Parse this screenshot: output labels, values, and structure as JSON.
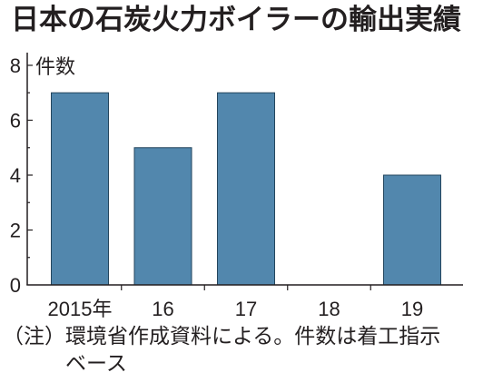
{
  "chart_data": {
    "type": "bar",
    "title": "日本の石炭火力ボイラーの輸出実績",
    "ylabel": "件数",
    "categories": [
      "2015年",
      "16",
      "17",
      "18",
      "19"
    ],
    "values": [
      7,
      5,
      7,
      0,
      4
    ],
    "ylim": [
      0,
      8
    ],
    "yticks": [
      0,
      2,
      4,
      6,
      8
    ],
    "grid": false,
    "bar_color": "#5287ad",
    "bar_edge_color": "#23455d"
  },
  "note": {
    "label": "（注）",
    "lines": [
      "環境省作成資料による。件数は着工指示",
      "ベース"
    ]
  }
}
